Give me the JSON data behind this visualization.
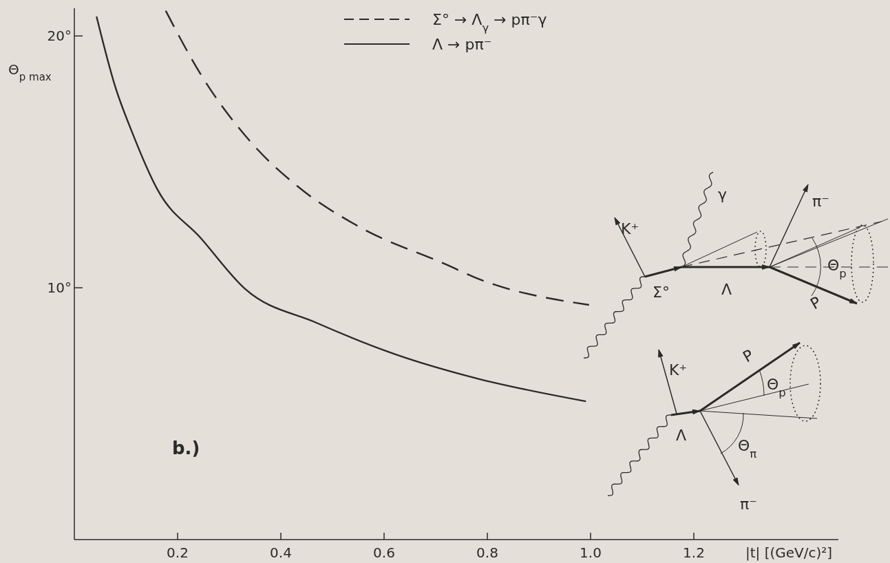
{
  "chart_data": {
    "type": "line",
    "xlabel": "|t| [(GeV/c)²]",
    "ylabel": "Θ$_{p max}$",
    "xlim": [
      0,
      1.48
    ],
    "xticks": [
      0.2,
      0.4,
      0.6,
      0.8,
      {
        "value": 1,
        "label": "1.0"
      },
      1.2
    ],
    "ylim": [
      0,
      21.1
    ],
    "yticks": [
      {
        "value": 10,
        "label": "10°"
      },
      {
        "value": 20,
        "label": "20°"
      }
    ],
    "grid": false,
    "legend": "top right",
    "marker": "none",
    "series": [
      {
        "name": "Σ° → Λ$_{γ}$ → pπ⁻γ",
        "color": "#2b2a28",
        "line_style": "dashed",
        "x": [
          0.177,
          0.245,
          0.339,
          0.433,
          0.551,
          0.723,
          0.776,
          0.997
        ],
        "values": [
          21.0,
          18.47,
          15.85,
          14.02,
          12.43,
          10.9,
          10.41,
          9.32
        ]
      },
      {
        "name": "Λ → pπ⁻",
        "color": "#2b2a28",
        "line_style": "solid",
        "x": [
          0.043,
          0.079,
          0.112,
          0.161,
          0.245,
          0.331,
          0.469,
          0.623,
          0.776,
          0.991
        ],
        "values": [
          20.77,
          18.0,
          16.17,
          13.9,
          11.97,
          9.95,
          8.61,
          7.35,
          6.42,
          5.49
        ]
      }
    ],
    "annotations": [
      "b.)",
      "K⁺",
      "γ",
      "π⁻",
      "Σ°",
      "Λ",
      "Θ$_{p}$",
      "P",
      "K⁺",
      "P",
      "Θ$_{p}$",
      "Λ",
      "Θ$_{π}$",
      "π⁻"
    ]
  }
}
